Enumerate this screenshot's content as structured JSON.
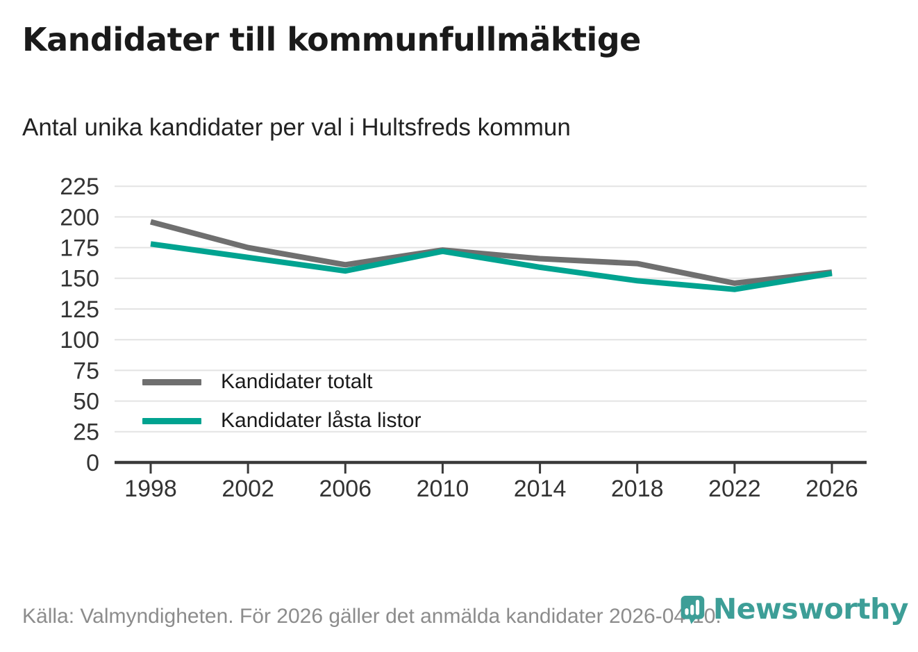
{
  "page": {
    "title": "Kandidater till kommunfullmäktige",
    "subtitle": "Antal unika kandidater per val i Hultsfreds kommun",
    "footer": "Källa: Valmyndigheten. För 2026 gäller det anmälda kandidater 2026-04-10.",
    "brand_name": "Newsworthy"
  },
  "colors": {
    "title_text": "#1a1a1a",
    "subtitle_text": "#222222",
    "axis": "#3a3a3a",
    "tick_label": "#333333",
    "grid": "#e3e3e3",
    "footer_text": "#8c8c8c",
    "total_line": "#6f6f6f",
    "locked_line": "#00a390",
    "brand_teal": "#3d9e97"
  },
  "chart_data": {
    "type": "line",
    "title": "Kandidater till kommunfullmäktige",
    "subtitle": "Antal unika kandidater per val i Hultsfreds kommun",
    "x": [
      1998,
      2002,
      2006,
      2010,
      2014,
      2018,
      2022,
      2026
    ],
    "series": [
      {
        "name": "Kandidater totalt",
        "color": "#6f6f6f",
        "values": [
          196,
          175,
          161,
          173,
          166,
          162,
          146,
          155
        ]
      },
      {
        "name": "Kandidater låsta listor",
        "color": "#00a390",
        "values": [
          178,
          167,
          156,
          172,
          159,
          148,
          141,
          154
        ]
      }
    ],
    "ylim": [
      0,
      235
    ],
    "yticks": [
      0,
      25,
      50,
      75,
      100,
      125,
      150,
      175,
      200,
      225
    ],
    "grid": "horizontal",
    "legend_position": "inside-left-middle",
    "source": "Källa: Valmyndigheten. För 2026 gäller det anmälda kandidater 2026-04-10."
  }
}
